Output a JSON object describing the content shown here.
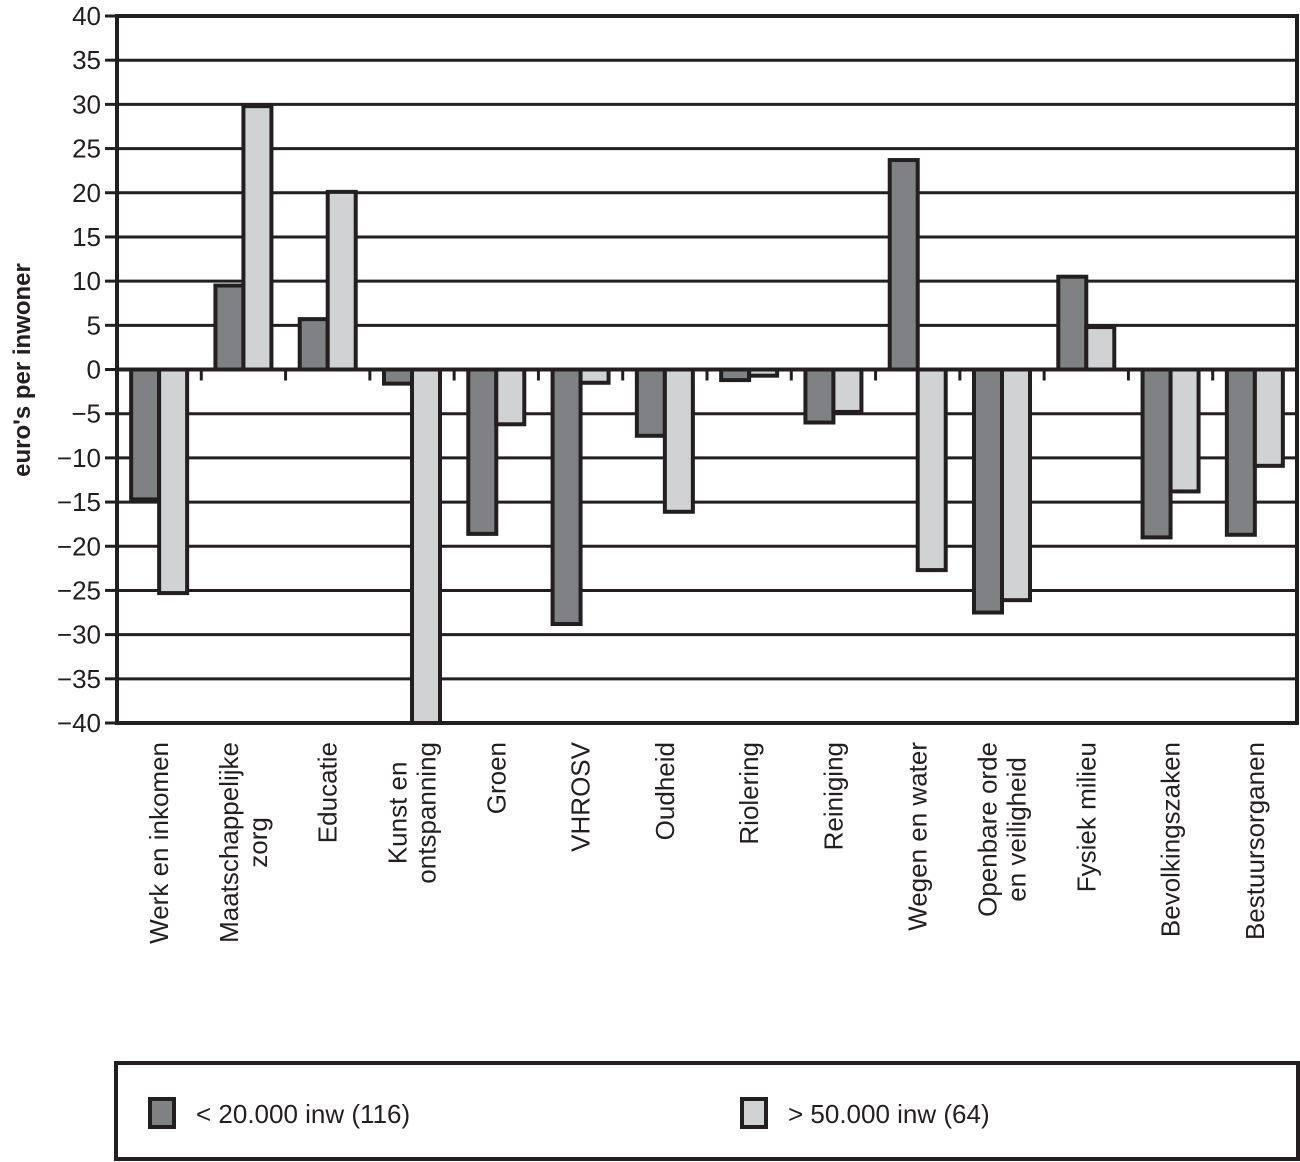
{
  "chart_data": {
    "type": "bar",
    "title": "",
    "xlabel": "",
    "ylabel": "euro's per inwoner",
    "ylim": [
      -40,
      40
    ],
    "ytick_step": 5,
    "yticks": [
      "40",
      "35",
      "30",
      "25",
      "20",
      "15",
      "10",
      "5",
      "0",
      "-5",
      "-10",
      "-15",
      "-20",
      "-25",
      "-30",
      "-35",
      "-40"
    ],
    "grid": true,
    "legend_position": "bottom",
    "categories": [
      [
        "Werk en inkomen"
      ],
      [
        "Maatschappelijke",
        "zorg"
      ],
      [
        "Educatie"
      ],
      [
        "Kunst en",
        "ontspanning"
      ],
      [
        "Groen"
      ],
      [
        "VHROSV"
      ],
      [
        "Oudheid"
      ],
      [
        "Riolering"
      ],
      [
        "Reiniging"
      ],
      [
        "Wegen en water"
      ],
      [
        "Openbare orde",
        "en veiligheid"
      ],
      [
        "Fysiek milieu"
      ],
      [
        "Bevolkingszaken"
      ],
      [
        "Bestuursorganen"
      ]
    ],
    "series": [
      {
        "name": "< 20.000 inw (116)",
        "color": "#808184",
        "values": [
          -14.7,
          9.5,
          5.7,
          -1.6,
          -18.6,
          -28.8,
          -7.5,
          -1.2,
          -6.0,
          23.7,
          -27.5,
          10.5,
          -19.0,
          -18.7
        ]
      },
      {
        "name": "> 50.000 inw (64)",
        "color": "#d1d2d4",
        "values": [
          -25.3,
          29.8,
          20.1,
          -40.0,
          -6.2,
          -1.5,
          -16.1,
          -0.7,
          -4.8,
          -22.7,
          -26.1,
          4.8,
          -13.8,
          -10.9
        ]
      }
    ],
    "colors": {
      "axis": "#231f20",
      "background": "#ffffff"
    }
  }
}
